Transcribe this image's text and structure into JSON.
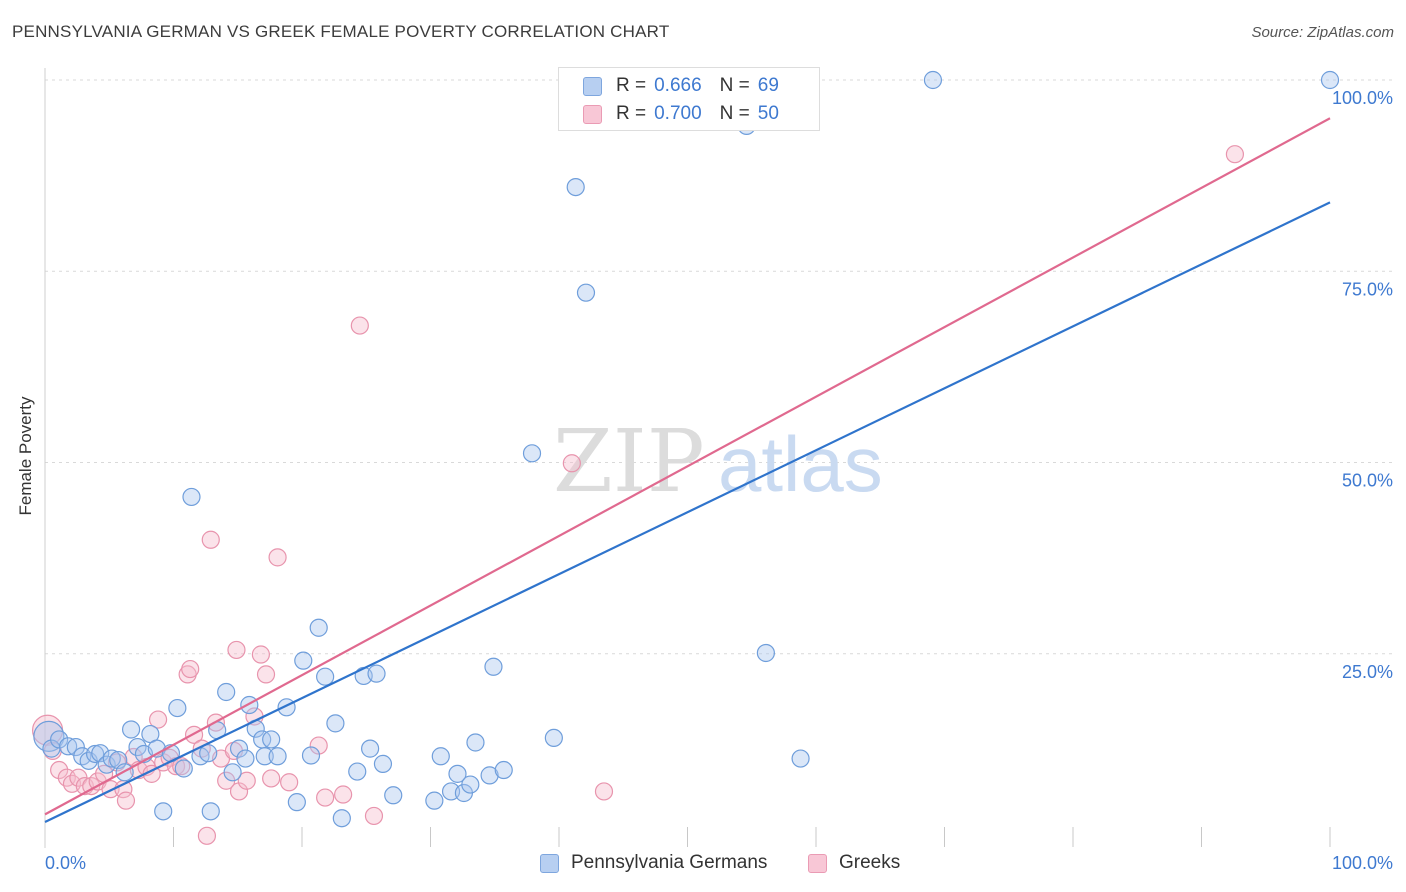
{
  "header": {
    "title": "PENNSYLVANIA GERMAN VS GREEK FEMALE POVERTY CORRELATION CHART",
    "source": "Source: ZipAtlas.com"
  },
  "legend": {
    "series1": {
      "r_label": "R =",
      "r_value": "0.666",
      "n_label": "N =",
      "n_value": "69"
    },
    "series2": {
      "r_label": "R =",
      "r_value": "0.700",
      "n_label": "N =",
      "n_value": "50"
    },
    "bottom1": "Pennsylvania Germans",
    "bottom2": "Greeks"
  },
  "watermark": {
    "part1": "ZIP",
    "part2": "atlas"
  },
  "colors": {
    "blue_fill": "#a9c6ee",
    "blue_stroke": "#6f9edb",
    "blue_line": "#2f74cc",
    "pink_fill": "#f6bccd",
    "pink_stroke": "#e894ad",
    "pink_line": "#e0698f"
  },
  "chart_data": {
    "type": "scatter",
    "title": "PENNSYLVANIA GERMAN VS GREEK FEMALE POVERTY CORRELATION CHART",
    "xlabel": "",
    "ylabel": "Female Poverty",
    "xlim": [
      0,
      100
    ],
    "ylim": [
      0,
      100
    ],
    "x_tick_labels": [
      "0.0%",
      "100.0%"
    ],
    "y_ticks": [
      25,
      50,
      75,
      100
    ],
    "y_tick_labels": [
      "25.0%",
      "50.0%",
      "75.0%",
      "100.0%"
    ],
    "grid": true,
    "series": [
      {
        "name": "Pennsylvania Germans",
        "r": 0.666,
        "n": 69,
        "trend": {
          "x": [
            0,
            100
          ],
          "y": [
            3.0,
            84.0
          ]
        },
        "points": [
          [
            0.3,
            14.2
          ],
          [
            0.5,
            12.6
          ],
          [
            1.1,
            13.8
          ],
          [
            1.8,
            12.9
          ],
          [
            2.4,
            12.8
          ],
          [
            2.9,
            11.6
          ],
          [
            3.4,
            11.0
          ],
          [
            3.9,
            11.9
          ],
          [
            4.3,
            12.0
          ],
          [
            4.8,
            10.5
          ],
          [
            5.2,
            11.3
          ],
          [
            5.7,
            11.1
          ],
          [
            6.2,
            9.5
          ],
          [
            6.7,
            15.1
          ],
          [
            7.2,
            12.8
          ],
          [
            7.7,
            11.9
          ],
          [
            8.2,
            14.5
          ],
          [
            8.7,
            12.6
          ],
          [
            9.2,
            4.4
          ],
          [
            9.8,
            12.0
          ],
          [
            10.3,
            17.9
          ],
          [
            10.8,
            10.0
          ],
          [
            11.4,
            45.5
          ],
          [
            12.1,
            11.6
          ],
          [
            12.7,
            12.0
          ],
          [
            12.9,
            4.4
          ],
          [
            13.4,
            15.0
          ],
          [
            14.1,
            20.0
          ],
          [
            14.6,
            9.5
          ],
          [
            15.1,
            12.6
          ],
          [
            15.6,
            11.3
          ],
          [
            15.9,
            18.3
          ],
          [
            16.4,
            15.2
          ],
          [
            16.9,
            13.8
          ],
          [
            17.1,
            11.6
          ],
          [
            17.6,
            13.8
          ],
          [
            18.1,
            11.6
          ],
          [
            18.8,
            18.0
          ],
          [
            19.6,
            5.6
          ],
          [
            20.1,
            24.1
          ],
          [
            20.7,
            11.7
          ],
          [
            21.3,
            28.4
          ],
          [
            21.8,
            22.0
          ],
          [
            22.6,
            15.9
          ],
          [
            23.1,
            3.5
          ],
          [
            24.3,
            9.6
          ],
          [
            24.8,
            22.1
          ],
          [
            25.3,
            12.6
          ],
          [
            25.8,
            22.4
          ],
          [
            26.3,
            10.6
          ],
          [
            27.1,
            6.5
          ],
          [
            30.3,
            5.8
          ],
          [
            30.8,
            11.6
          ],
          [
            31.6,
            7.0
          ],
          [
            32.1,
            9.3
          ],
          [
            32.6,
            6.8
          ],
          [
            33.1,
            7.9
          ],
          [
            33.5,
            13.4
          ],
          [
            34.6,
            9.1
          ],
          [
            34.9,
            23.3
          ],
          [
            35.7,
            9.8
          ],
          [
            37.9,
            51.2
          ],
          [
            39.6,
            14.0
          ],
          [
            41.3,
            86.0
          ],
          [
            42.1,
            72.2
          ],
          [
            54.6,
            94.0
          ],
          [
            56.1,
            25.1
          ],
          [
            58.8,
            11.3
          ],
          [
            69.1,
            100.0
          ],
          [
            100.0,
            100.0
          ]
        ]
      },
      {
        "name": "Greeks",
        "r": 0.7,
        "n": 50,
        "trend": {
          "x": [
            0,
            100
          ],
          "y": [
            4.0,
            95.0
          ]
        },
        "points": [
          [
            0.2,
            15.0
          ],
          [
            0.6,
            12.3
          ],
          [
            1.1,
            9.8
          ],
          [
            1.7,
            8.8
          ],
          [
            2.1,
            8.0
          ],
          [
            2.6,
            8.8
          ],
          [
            3.1,
            7.7
          ],
          [
            3.6,
            7.7
          ],
          [
            4.1,
            8.3
          ],
          [
            4.6,
            9.3
          ],
          [
            5.1,
            7.3
          ],
          [
            5.6,
            10.8
          ],
          [
            6.1,
            7.3
          ],
          [
            6.3,
            5.8
          ],
          [
            6.9,
            11.5
          ],
          [
            7.3,
            9.8
          ],
          [
            7.9,
            10.2
          ],
          [
            8.3,
            9.3
          ],
          [
            8.8,
            16.4
          ],
          [
            9.2,
            10.8
          ],
          [
            9.7,
            11.4
          ],
          [
            10.2,
            10.3
          ],
          [
            10.6,
            10.3
          ],
          [
            11.1,
            22.3
          ],
          [
            11.3,
            23.0
          ],
          [
            11.6,
            14.4
          ],
          [
            12.2,
            12.6
          ],
          [
            12.6,
            1.2
          ],
          [
            12.9,
            39.9
          ],
          [
            13.3,
            16.0
          ],
          [
            13.7,
            11.3
          ],
          [
            14.1,
            8.4
          ],
          [
            14.7,
            12.3
          ],
          [
            14.9,
            25.5
          ],
          [
            15.1,
            7.0
          ],
          [
            15.7,
            8.4
          ],
          [
            16.3,
            16.8
          ],
          [
            16.8,
            24.9
          ],
          [
            17.2,
            22.3
          ],
          [
            17.6,
            8.7
          ],
          [
            18.1,
            37.6
          ],
          [
            19.0,
            8.2
          ],
          [
            21.3,
            13.0
          ],
          [
            21.8,
            6.2
          ],
          [
            23.2,
            6.6
          ],
          [
            24.5,
            67.9
          ],
          [
            25.6,
            3.8
          ],
          [
            41.0,
            49.9
          ],
          [
            43.5,
            7.0
          ],
          [
            92.6,
            90.3
          ]
        ]
      }
    ]
  }
}
